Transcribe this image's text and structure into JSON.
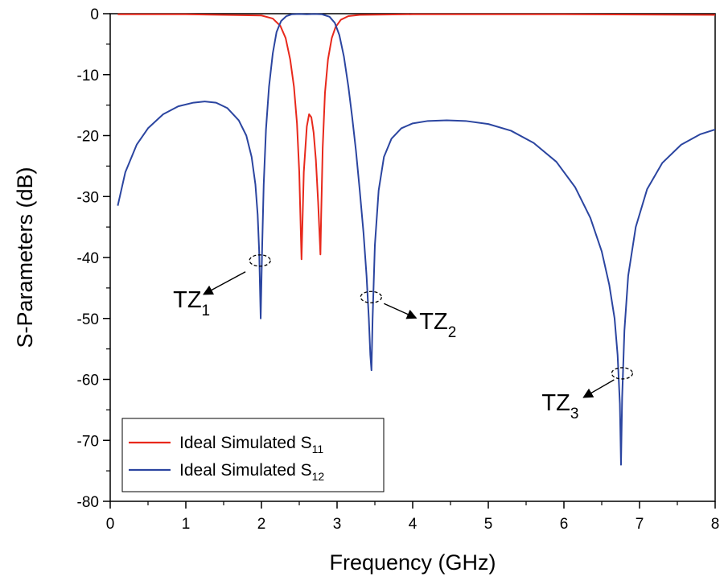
{
  "chart_data": {
    "type": "line",
    "xlabel": "Frequency (GHz)",
    "ylabel": "S-Parameters (dB)",
    "xlim": [
      0,
      8
    ],
    "ylim": [
      -80,
      0
    ],
    "xticks": [
      0,
      1,
      2,
      3,
      4,
      5,
      6,
      7,
      8
    ],
    "xtick_labels": [
      "0",
      "1",
      "2",
      "3",
      "4",
      "5",
      "6",
      "7",
      "8"
    ],
    "yticks": [
      0,
      -10,
      -20,
      -30,
      -40,
      -50,
      -60,
      -70,
      -80
    ],
    "ytick_labels": [
      "0",
      "-10",
      "-20",
      "-30",
      "-40",
      "-50",
      "-60",
      "-70",
      "-80"
    ],
    "grid": false,
    "legend_position": "bottom-left",
    "series": [
      {
        "name": "Ideal Simulated S11",
        "label_main": "Ideal Simulated S",
        "label_sub": "11",
        "color": "#e8291c",
        "x": [
          0.1,
          1.0,
          2.0,
          2.15,
          2.25,
          2.32,
          2.38,
          2.43,
          2.47,
          2.5,
          2.53,
          2.56,
          2.6,
          2.63,
          2.66,
          2.69,
          2.72,
          2.75,
          2.78,
          2.79,
          2.81,
          2.84,
          2.88,
          2.93,
          2.98,
          3.05,
          3.15,
          3.3,
          4.0,
          6.0,
          8.0
        ],
        "values": [
          -0.1,
          -0.1,
          -0.3,
          -0.8,
          -2.0,
          -4.0,
          -7.5,
          -12.0,
          -18.0,
          -26.0,
          -40.3,
          -26.0,
          -18.5,
          -16.5,
          -17.0,
          -19.5,
          -24.0,
          -31.0,
          -39.5,
          -33.0,
          -22.0,
          -13.0,
          -7.5,
          -4.0,
          -2.2,
          -1.0,
          -0.4,
          -0.2,
          -0.1,
          -0.1,
          -0.2
        ]
      },
      {
        "name": "Ideal Simulated S12",
        "label_main": "Ideal Simulated S",
        "label_sub": "12",
        "color": "#2b45a0",
        "x": [
          0.1,
          0.2,
          0.35,
          0.5,
          0.7,
          0.9,
          1.1,
          1.25,
          1.4,
          1.55,
          1.7,
          1.8,
          1.87,
          1.92,
          1.95,
          1.97,
          1.99,
          2.01,
          2.03,
          2.06,
          2.1,
          2.15,
          2.2,
          2.26,
          2.33,
          2.4,
          2.5,
          2.6,
          2.7,
          2.8,
          2.9,
          2.97,
          3.03,
          3.09,
          3.15,
          3.2,
          3.25,
          3.3,
          3.35,
          3.39,
          3.42,
          3.44,
          3.455,
          3.47,
          3.5,
          3.55,
          3.62,
          3.72,
          3.85,
          4.0,
          4.2,
          4.45,
          4.7,
          5.0,
          5.3,
          5.6,
          5.9,
          6.15,
          6.35,
          6.5,
          6.6,
          6.67,
          6.71,
          6.74,
          6.755,
          6.77,
          6.8,
          6.85,
          6.95,
          7.1,
          7.3,
          7.55,
          7.8,
          8.0
        ],
        "values": [
          -31.5,
          -26.0,
          -21.5,
          -18.8,
          -16.5,
          -15.2,
          -14.6,
          -14.4,
          -14.6,
          -15.5,
          -17.5,
          -20.0,
          -23.5,
          -28.0,
          -33.0,
          -39.0,
          -50.0,
          -38.0,
          -28.0,
          -19.0,
          -12.0,
          -6.5,
          -3.0,
          -1.2,
          -0.4,
          -0.1,
          -0.05,
          -0.1,
          -0.05,
          -0.1,
          -0.5,
          -1.5,
          -3.5,
          -7.0,
          -12.0,
          -17.0,
          -22.5,
          -29.0,
          -36.0,
          -43.0,
          -50.0,
          -56.0,
          -58.5,
          -50.0,
          -38.0,
          -29.0,
          -23.5,
          -20.5,
          -18.8,
          -18.0,
          -17.6,
          -17.5,
          -17.6,
          -18.1,
          -19.2,
          -21.2,
          -24.3,
          -28.5,
          -33.5,
          -39.0,
          -44.5,
          -50.0,
          -56.0,
          -64.0,
          -74.0,
          -63.0,
          -52.0,
          -43.0,
          -35.0,
          -28.8,
          -24.5,
          -21.5,
          -19.8,
          -19.0
        ]
      }
    ],
    "annotations": [
      {
        "text": "TZ",
        "sub": "1",
        "x": 1.98,
        "y": -40.5
      },
      {
        "text": "TZ",
        "sub": "2",
        "x": 3.45,
        "y": -46.5
      },
      {
        "text": "TZ",
        "sub": "3",
        "x": 6.77,
        "y": -59.0
      }
    ]
  }
}
